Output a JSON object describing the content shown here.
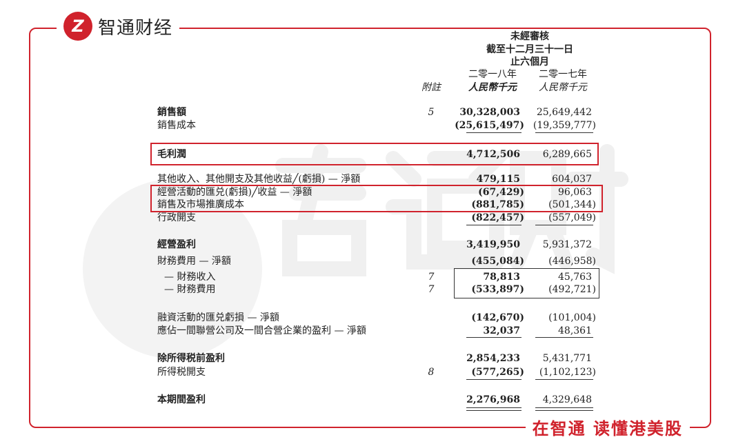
{
  "brand": {
    "logo_text": "智通财经",
    "logo_mark": "Z",
    "slogan": "在智通 读懂港美股",
    "watermark": "智通财经",
    "accent": "#d0222c"
  },
  "header": {
    "line1": "未經審核",
    "line2": "截至十二月三十一日",
    "line3": "止六個月",
    "note_label": "附註",
    "year1": "二零一八年",
    "year2": "二零一七年",
    "unit1": "人民幣千元",
    "unit2": "人民幣千元"
  },
  "rows": [
    {
      "label": "銷售額",
      "note": "5",
      "v1": "30,328,003",
      "v2": "25,649,442",
      "bold": true
    },
    {
      "label": "銷售成本",
      "note": "",
      "v1": "(25,615,497)",
      "v2": "(19,359,777)"
    },
    {
      "label": "毛利潤",
      "note": "",
      "v1": "4,712,506",
      "v2": "6,289,665",
      "bold": true
    },
    {
      "label": "其他收入、其他開支及其他收益╱(虧損) — 淨額",
      "note": "",
      "v1": "479,115",
      "v2": "604,037"
    },
    {
      "label": "經營活動的匯兑(虧損)╱收益 — 淨額",
      "note": "",
      "v1": "(67,429)",
      "v2": "96,063"
    },
    {
      "label": "銷售及市場推廣成本",
      "note": "",
      "v1": "(881,785)",
      "v2": "(501,344)"
    },
    {
      "label": "行政開支",
      "note": "",
      "v1": "(822,457)",
      "v2": "(557,049)"
    },
    {
      "label": "經營盈利",
      "note": "",
      "v1": "3,419,950",
      "v2": "5,931,372",
      "bold": true
    },
    {
      "label": "財務費用 — 淨額",
      "note": "",
      "v1": "(455,084)",
      "v2": "(446,958)"
    },
    {
      "label": "  — 財務收入",
      "note": "7",
      "v1": "78,813",
      "v2": "45,763"
    },
    {
      "label": "  — 財務費用",
      "note": "7",
      "v1": "(533,897)",
      "v2": "(492,721)"
    },
    {
      "label": "融資活動的匯兑虧損 — 淨額",
      "note": "",
      "v1": "(142,670)",
      "v2": "(101,004)"
    },
    {
      "label": "應佔一間聯營公司及一間合營企業的盈利 — 淨額",
      "note": "",
      "v1": "32,037",
      "v2": "48,361"
    },
    {
      "label": "除所得税前盈利",
      "note": "",
      "v1": "2,854,233",
      "v2": "5,431,771",
      "bold": true
    },
    {
      "label": "所得税開支",
      "note": "8",
      "v1": "(577,265)",
      "v2": "(1,102,123)"
    },
    {
      "label": "本期間盈利",
      "note": "",
      "v1": "2,276,968",
      "v2": "4,329,648",
      "bold": true
    }
  ]
}
